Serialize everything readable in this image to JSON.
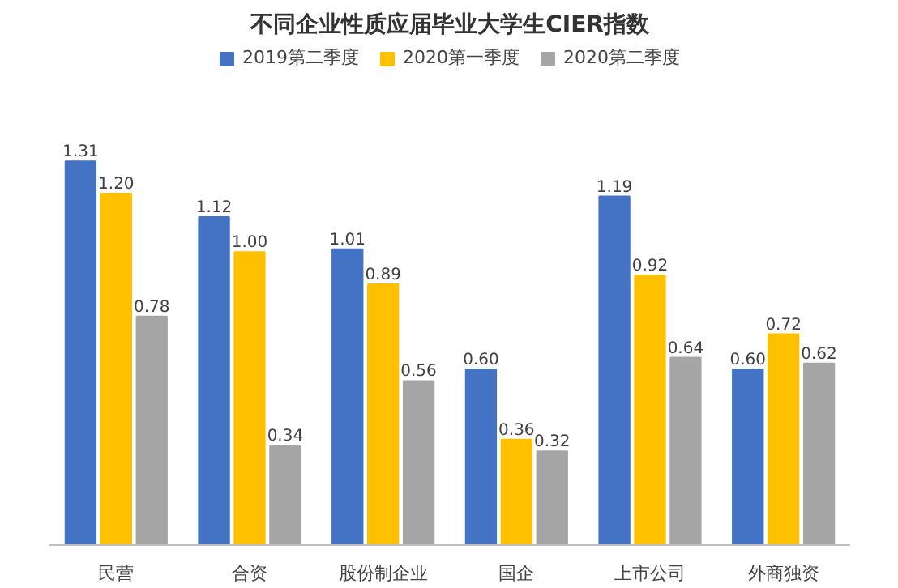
{
  "chart_data": {
    "type": "bar",
    "title": "不同企业性质应届毕业大学生CIER指数",
    "categories": [
      "民营",
      "合资",
      "股份制企业",
      "国企",
      "上市公司",
      "外商独资"
    ],
    "series": [
      {
        "name": "2019第二季度",
        "color": "#4472c4",
        "values": [
          1.31,
          1.12,
          1.01,
          0.6,
          1.19,
          0.6
        ],
        "value_labels": [
          "1.31",
          "1.12",
          "1.01",
          "0.60",
          "1.19",
          "0.60"
        ]
      },
      {
        "name": "2020第一季度",
        "color": "#ffc000",
        "values": [
          1.2,
          1.0,
          0.89,
          0.36,
          0.92,
          0.72
        ],
        "value_labels": [
          "1.20",
          "1.00",
          "0.89",
          "0.36",
          "0.92",
          "0.72"
        ]
      },
      {
        "name": "2020第二季度",
        "color": "#a5a5a5",
        "values": [
          0.78,
          0.34,
          0.56,
          0.32,
          0.64,
          0.62
        ],
        "value_labels": [
          "0.78",
          "0.34",
          "0.56",
          "0.32",
          "0.64",
          "0.62"
        ]
      }
    ],
    "grid": false,
    "legend": "top"
  }
}
